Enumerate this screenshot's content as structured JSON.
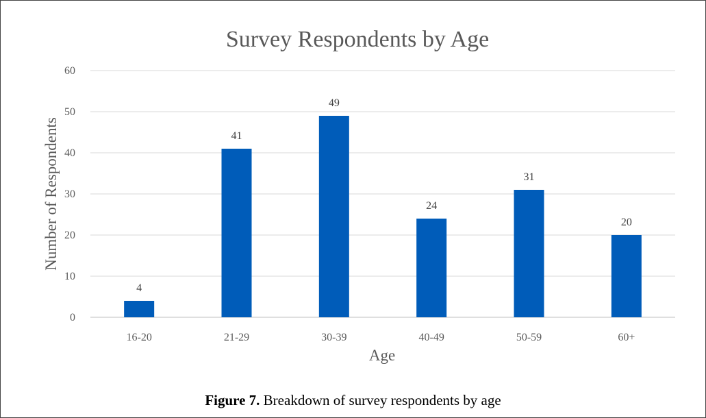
{
  "chart_data": {
    "type": "bar",
    "title": "Survey Respondents by Age",
    "xlabel": "Age",
    "ylabel": "Number of Respondents",
    "categories": [
      "16-20",
      "21-29",
      "30-39",
      "40-49",
      "50-59",
      "60+"
    ],
    "values": [
      4,
      41,
      49,
      24,
      31,
      20
    ],
    "ylim": [
      0,
      60
    ],
    "yticks": [
      0,
      10,
      20,
      30,
      40,
      50,
      60
    ],
    "grid": true,
    "legend": "none",
    "bar_color": "#005CB9",
    "grid_color": "#D9D9D9",
    "axis_line_color": "#BFBFBF",
    "text_color": "#595959"
  },
  "caption": {
    "label": "Figure 7.",
    "text": " Breakdown of survey respondents by age"
  }
}
